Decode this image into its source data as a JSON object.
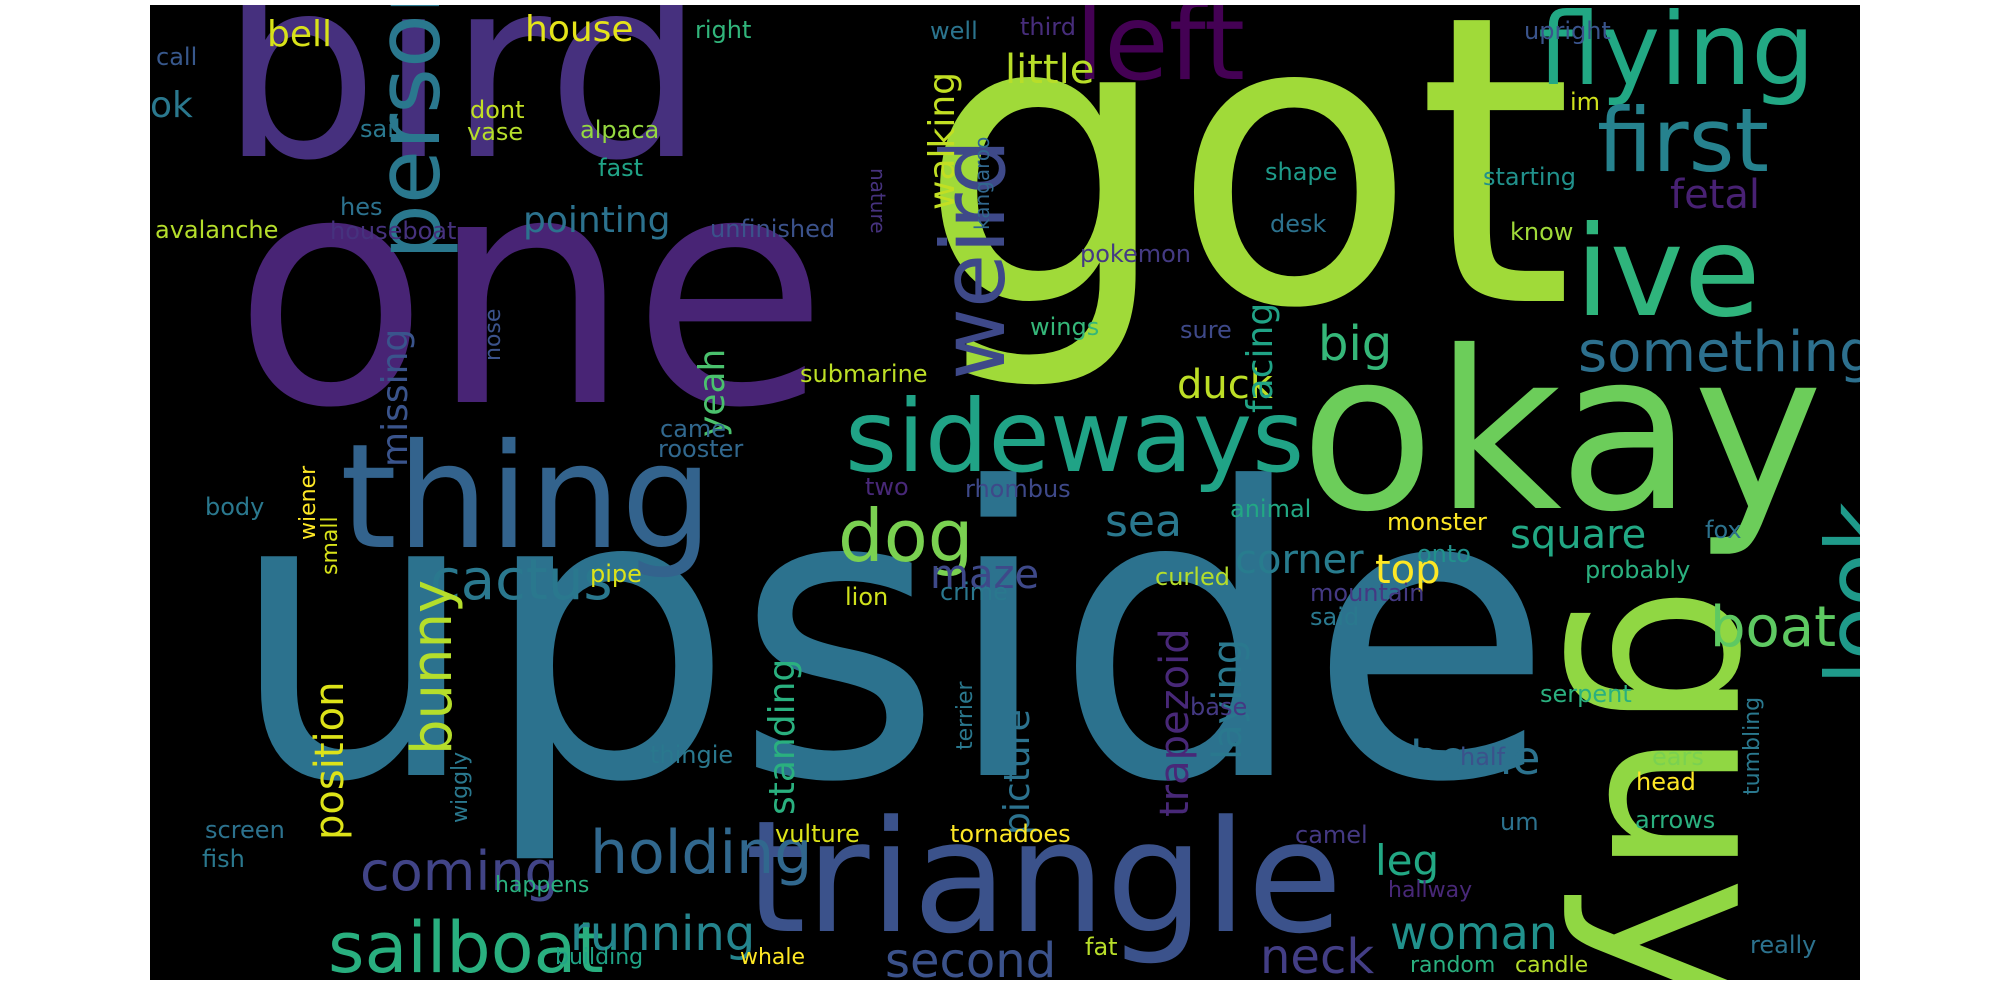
{
  "wordcloud": {
    "words": [
      {
        "text": "upside",
        "color": "#2c728e"
      },
      {
        "text": "got",
        "color": "#a0da39"
      },
      {
        "text": "one",
        "color": "#482475"
      },
      {
        "text": "bird",
        "color": "#46307e"
      },
      {
        "text": "okay",
        "color": "#6ccd5a"
      },
      {
        "text": "guy",
        "color": "#90d743"
      },
      {
        "text": "thing",
        "color": "#33638d"
      },
      {
        "text": "triangle",
        "color": "#3b528b"
      },
      {
        "text": "left",
        "color": "#440154"
      },
      {
        "text": "flying",
        "color": "#22a884"
      },
      {
        "text": "ive",
        "color": "#2fb47c"
      },
      {
        "text": "first",
        "color": "#26828e"
      },
      {
        "text": "sideways",
        "color": "#20a386"
      },
      {
        "text": "person",
        "color": "#2a788e"
      },
      {
        "text": "weird",
        "color": "#3e4989"
      },
      {
        "text": "look",
        "color": "#1f9a8a"
      },
      {
        "text": "sailboat",
        "color": "#29af7f"
      },
      {
        "text": "something",
        "color": "#2d708e"
      },
      {
        "text": "dog",
        "color": "#7ad151"
      },
      {
        "text": "holding",
        "color": "#31688e"
      },
      {
        "text": "cactus",
        "color": "#2a788e"
      },
      {
        "text": "boat",
        "color": "#5ec962"
      },
      {
        "text": "bunny",
        "color": "#b5de2b"
      },
      {
        "text": "running",
        "color": "#25858e"
      },
      {
        "text": "coming",
        "color": "#414487"
      },
      {
        "text": "second",
        "color": "#3b528b"
      },
      {
        "text": "woman",
        "color": "#21918c"
      },
      {
        "text": "neck",
        "color": "#433e85"
      },
      {
        "text": "home",
        "color": "#2c728e"
      },
      {
        "text": "big",
        "color": "#35b779"
      },
      {
        "text": "square",
        "color": "#22a884"
      },
      {
        "text": "corner",
        "color": "#287c8e"
      },
      {
        "text": "sea",
        "color": "#2a788e"
      },
      {
        "text": "top",
        "color": "#fde725"
      },
      {
        "text": "duck",
        "color": "#bddf26"
      },
      {
        "text": "position",
        "color": "#dde318"
      },
      {
        "text": "missing",
        "color": "#3a548c"
      },
      {
        "text": "yeah",
        "color": "#4ac16d"
      },
      {
        "text": "maze",
        "color": "#3e4989"
      },
      {
        "text": "leg",
        "color": "#22a884"
      },
      {
        "text": "trapezoid",
        "color": "#482878"
      },
      {
        "text": "laying",
        "color": "#2a788e"
      },
      {
        "text": "picture",
        "color": "#2c728e"
      },
      {
        "text": "standing",
        "color": "#2ab07f"
      },
      {
        "text": "facing",
        "color": "#20a386"
      },
      {
        "text": "fetal",
        "color": "#482173"
      },
      {
        "text": "walking",
        "color": "#c2df23"
      },
      {
        "text": "little",
        "color": "#b8de29"
      },
      {
        "text": "house",
        "color": "#e5e419"
      },
      {
        "text": "bell",
        "color": "#d8e219"
      },
      {
        "text": "pointing",
        "color": "#2c728e"
      },
      {
        "text": "ok",
        "color": "#2a788e"
      },
      {
        "text": "right",
        "color": "#31b57b"
      },
      {
        "text": "well",
        "color": "#2b748e"
      },
      {
        "text": "third",
        "color": "#472d7b"
      },
      {
        "text": "upright",
        "color": "#3a548c"
      },
      {
        "text": "call",
        "color": "#38588c"
      },
      {
        "text": "im",
        "color": "#d0e11c"
      },
      {
        "text": "dont",
        "color": "#c2df23"
      },
      {
        "text": "sail",
        "color": "#2a788e"
      },
      {
        "text": "vase",
        "color": "#b5de2b"
      },
      {
        "text": "alpaca",
        "color": "#95d840"
      },
      {
        "text": "fast",
        "color": "#20a386"
      },
      {
        "text": "nature",
        "color": "#46327e"
      },
      {
        "text": "kangaroo",
        "color": "#31688e"
      },
      {
        "text": "shape",
        "color": "#1e9b8a"
      },
      {
        "text": "starting",
        "color": "#21918c"
      },
      {
        "text": "hes",
        "color": "#2c728e"
      },
      {
        "text": "avalanche",
        "color": "#b5de2b"
      },
      {
        "text": "houseboat",
        "color": "#46327e"
      },
      {
        "text": "unfinished",
        "color": "#3b528b"
      },
      {
        "text": "desk",
        "color": "#2c728e"
      },
      {
        "text": "know",
        "color": "#a0da39"
      },
      {
        "text": "pokemon",
        "color": "#443a83"
      },
      {
        "text": "wings",
        "color": "#35b779"
      },
      {
        "text": "sure",
        "color": "#3e4989"
      },
      {
        "text": "nose",
        "color": "#3b528b"
      },
      {
        "text": "submarine",
        "color": "#bddf26"
      },
      {
        "text": "came",
        "color": "#31688e"
      },
      {
        "text": "rooster",
        "color": "#31688e"
      },
      {
        "text": "two",
        "color": "#482878"
      },
      {
        "text": "rhombus",
        "color": "#3e4989"
      },
      {
        "text": "body",
        "color": "#2a788e"
      },
      {
        "text": "wiener",
        "color": "#fde725"
      },
      {
        "text": "small",
        "color": "#d8e219"
      },
      {
        "text": "animal",
        "color": "#22a884"
      },
      {
        "text": "monster",
        "color": "#fde725"
      },
      {
        "text": "fox",
        "color": "#2c728e"
      },
      {
        "text": "onto",
        "color": "#21918c"
      },
      {
        "text": "probably",
        "color": "#2ab07f"
      },
      {
        "text": "pipe",
        "color": "#dde318"
      },
      {
        "text": "lion",
        "color": "#d0e11c"
      },
      {
        "text": "crime",
        "color": "#2a788e"
      },
      {
        "text": "curled",
        "color": "#b5de2b"
      },
      {
        "text": "mountain",
        "color": "#443983"
      },
      {
        "text": "said",
        "color": "#2a788e"
      },
      {
        "text": "terrier",
        "color": "#2a788e"
      },
      {
        "text": "serpent",
        "color": "#2ab07f"
      },
      {
        "text": "tumbling",
        "color": "#2a788e"
      },
      {
        "text": "base",
        "color": "#443983"
      },
      {
        "text": "thingie",
        "color": "#2a788e"
      },
      {
        "text": "half",
        "color": "#3b528b"
      },
      {
        "text": "ears",
        "color": "#7ad151"
      },
      {
        "text": "head",
        "color": "#fde725"
      },
      {
        "text": "wiggly",
        "color": "#2a788e"
      },
      {
        "text": "screen",
        "color": "#2c728e"
      },
      {
        "text": "arrows",
        "color": "#2ab07f"
      },
      {
        "text": "um",
        "color": "#2c728e"
      },
      {
        "text": "vulture",
        "color": "#dde318"
      },
      {
        "text": "tornadoes",
        "color": "#fde725"
      },
      {
        "text": "camel",
        "color": "#443983"
      },
      {
        "text": "fish",
        "color": "#2a788e"
      },
      {
        "text": "happens",
        "color": "#2ab07f"
      },
      {
        "text": "hallway",
        "color": "#482878"
      },
      {
        "text": "building",
        "color": "#20a386"
      },
      {
        "text": "whale",
        "color": "#fde725"
      },
      {
        "text": "fat",
        "color": "#b8de29"
      },
      {
        "text": "random",
        "color": "#2ab07f"
      },
      {
        "text": "candle",
        "color": "#b5de2b"
      },
      {
        "text": "really",
        "color": "#2c728e"
      }
    ]
  }
}
